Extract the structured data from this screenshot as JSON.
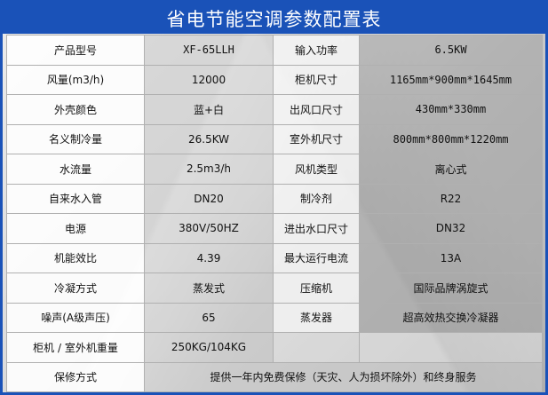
{
  "title": "省电节能空调参数配置表",
  "rows": [
    {
      "label1": "产品型号",
      "value1": "XF-65LLH",
      "label2": "输入功率",
      "value2": "6.5KW"
    },
    {
      "label1": "风量(m3/h)",
      "value1": "12000",
      "label2": "柜机尺寸",
      "value2": "1165mm*900mm*1645mm"
    },
    {
      "label1": "外壳颜色",
      "value1": "蓝+白",
      "label2": "出风口尺寸",
      "value2": "430mm*330mm"
    },
    {
      "label1": "名义制冷量",
      "value1": "26.5KW",
      "label2": "室外机尺寸",
      "value2": "800mm*800mm*1220mm"
    },
    {
      "label1": "水流量",
      "value1": "2.5m3/h",
      "label2": "风机类型",
      "value2": "离心式"
    },
    {
      "label1": "自来水入管",
      "value1": "DN20",
      "label2": "制冷剂",
      "value2": "R22"
    },
    {
      "label1": "电源",
      "value1": "380V/50HZ",
      "label2": "进出水口尺寸",
      "value2": "DN32"
    },
    {
      "label1": "机能效比",
      "value1": "4.39",
      "label2": "最大运行电流",
      "value2": "13A"
    },
    {
      "label1": "冷凝方式",
      "value1": "蒸发式",
      "label2": "压缩机",
      "value2": "国际品牌涡旋式"
    },
    {
      "label1": "噪声(A级声压)",
      "value1": "65",
      "label2": "蒸发器",
      "value2": "超高效热交换冷凝器"
    },
    {
      "label1": "柜机 / 室外机重量",
      "value1": "250KG/104KG",
      "label2": "",
      "value2": ""
    }
  ],
  "warranty": {
    "label": "保修方式",
    "value": "提供一年内免费保修（天灾、人为损坏除外）和终身服务"
  }
}
